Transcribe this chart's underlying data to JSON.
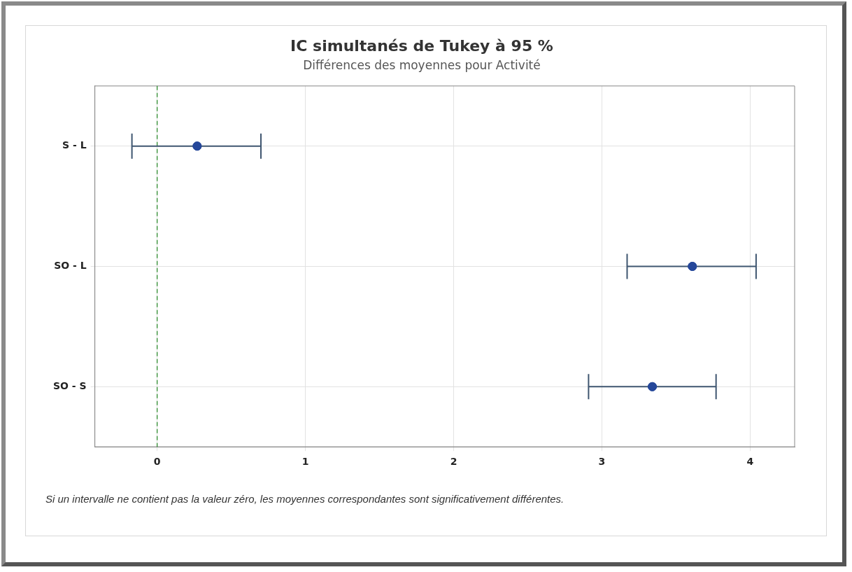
{
  "chart_data": {
    "type": "scatter",
    "orientation": "horizontal",
    "title": "IC simultanés de Tukey à 95 %",
    "subtitle": "Différences des moyennes pour Activité",
    "categories": [
      "S - L",
      "SO - L",
      "SO - S"
    ],
    "values": [
      0.27,
      3.61,
      3.34
    ],
    "color": "#25479a",
    "errors": [
      [
        -0.17,
        0.7
      ],
      [
        3.17,
        4.04
      ],
      [
        2.91,
        3.77
      ]
    ],
    "xlim": [
      -0.42,
      4.3
    ],
    "xticks": [
      0,
      1,
      2,
      3,
      4
    ],
    "ref_lines": [
      {
        "axis": "x",
        "value": 0,
        "color": "#2e8b2e",
        "line_style": "dashed"
      }
    ],
    "grid": true,
    "legend": false,
    "marker": "circle",
    "annotations": [
      "Si un intervalle ne contient pas la valeur zéro, les moyennes correspondantes sont significativement différentes."
    ]
  }
}
